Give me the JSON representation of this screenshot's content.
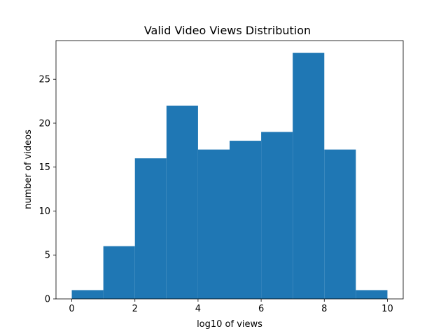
{
  "chart_data": {
    "type": "bar",
    "title": "Valid Video Views Distribution",
    "xlabel": "log10 of views",
    "ylabel": "number of videos",
    "bin_edges": [
      0,
      1,
      2,
      3,
      4,
      5,
      6,
      7,
      8,
      9,
      10
    ],
    "values": [
      1,
      6,
      16,
      22,
      17,
      18,
      19,
      28,
      17,
      1
    ],
    "xlim": [
      -0.5,
      10.5
    ],
    "ylim": [
      0,
      29.4
    ],
    "xticks": [
      0,
      2,
      4,
      6,
      8,
      10
    ],
    "yticks": [
      0,
      5,
      10,
      15,
      20,
      25
    ],
    "grid": false,
    "bar_color": "#1f77b4"
  }
}
